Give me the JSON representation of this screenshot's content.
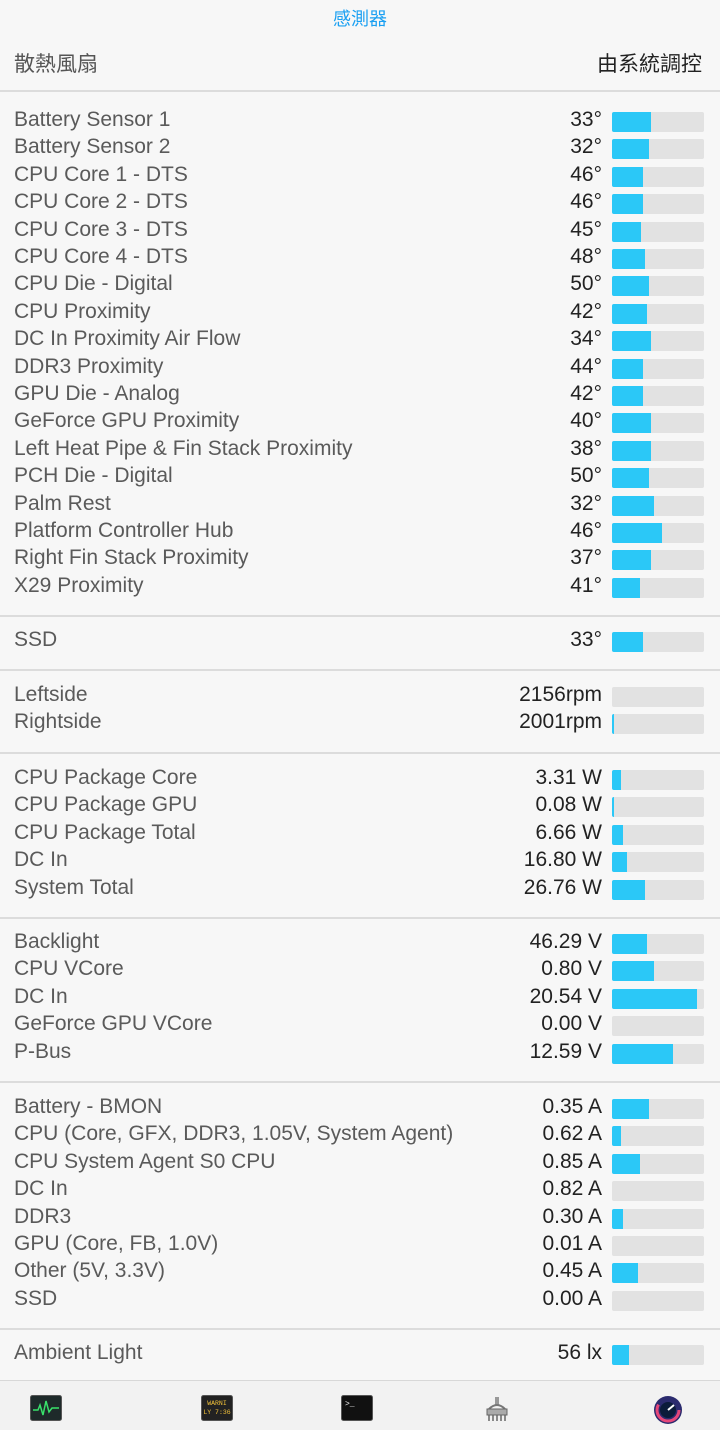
{
  "header": {
    "title": "感測器"
  },
  "fan_control": {
    "label": "散熱風扇",
    "value": "由系統調控"
  },
  "sections": [
    {
      "id": "temperature",
      "rows": [
        {
          "name": "Battery Sensor 1",
          "value": "33°",
          "level": 0.42
        },
        {
          "name": "Battery Sensor 2",
          "value": "32°",
          "level": 0.4
        },
        {
          "name": "CPU Core 1 - DTS",
          "value": "46°",
          "level": 0.34
        },
        {
          "name": "CPU Core 2 - DTS",
          "value": "46°",
          "level": 0.34
        },
        {
          "name": "CPU Core 3 - DTS",
          "value": "45°",
          "level": 0.32
        },
        {
          "name": "CPU Core 4 - DTS",
          "value": "48°",
          "level": 0.36
        },
        {
          "name": "CPU Die - Digital",
          "value": "50°",
          "level": 0.4
        },
        {
          "name": "CPU Proximity",
          "value": "42°",
          "level": 0.38
        },
        {
          "name": "DC In Proximity Air Flow",
          "value": "34°",
          "level": 0.42
        },
        {
          "name": "DDR3 Proximity",
          "value": "44°",
          "level": 0.34
        },
        {
          "name": "GPU Die - Analog",
          "value": "42°",
          "level": 0.34
        },
        {
          "name": "GeForce GPU Proximity",
          "value": "40°",
          "level": 0.42
        },
        {
          "name": "Left Heat Pipe & Fin Stack Proximity",
          "value": "38°",
          "level": 0.42
        },
        {
          "name": "PCH Die - Digital",
          "value": "50°",
          "level": 0.4
        },
        {
          "name": "Palm Rest",
          "value": "32°",
          "level": 0.46
        },
        {
          "name": "Platform Controller Hub",
          "value": "46°",
          "level": 0.54
        },
        {
          "name": "Right Fin Stack Proximity",
          "value": "37°",
          "level": 0.42
        },
        {
          "name": "X29 Proximity",
          "value": "41°",
          "level": 0.3
        }
      ]
    },
    {
      "id": "disk",
      "rows": [
        {
          "name": "SSD",
          "value": "33°",
          "level": 0.34
        }
      ]
    },
    {
      "id": "fans",
      "rows": [
        {
          "name": "Leftside",
          "value": "2156rpm",
          "level": 0.0
        },
        {
          "name": "Rightside",
          "value": "2001rpm",
          "level": 0.02
        }
      ]
    },
    {
      "id": "power",
      "rows": [
        {
          "name": "CPU Package Core",
          "value": "3.31 W",
          "level": 0.1
        },
        {
          "name": "CPU Package GPU",
          "value": "0.08 W",
          "level": 0.02
        },
        {
          "name": "CPU Package Total",
          "value": "6.66 W",
          "level": 0.12
        },
        {
          "name": "DC In",
          "value": "16.80 W",
          "level": 0.16
        },
        {
          "name": "System Total",
          "value": "26.76 W",
          "level": 0.36
        }
      ]
    },
    {
      "id": "voltage",
      "rows": [
        {
          "name": "Backlight",
          "value": "46.29 V",
          "level": 0.38
        },
        {
          "name": "CPU VCore",
          "value": "0.80 V",
          "level": 0.46
        },
        {
          "name": "DC In",
          "value": "20.54 V",
          "level": 0.92
        },
        {
          "name": "GeForce GPU VCore",
          "value": "0.00 V",
          "level": 0.0
        },
        {
          "name": "P-Bus",
          "value": "12.59 V",
          "level": 0.66
        }
      ]
    },
    {
      "id": "current",
      "rows": [
        {
          "name": "Battery - BMON",
          "value": "0.35 A",
          "level": 0.4
        },
        {
          "name": "CPU (Core, GFX, DDR3, 1.05V, System Agent)",
          "value": "0.62 A",
          "level": 0.1
        },
        {
          "name": "CPU System Agent S0 CPU",
          "value": "0.85 A",
          "level": 0.3
        },
        {
          "name": "DC In",
          "value": "0.82 A",
          "level": 0.0
        },
        {
          "name": "DDR3",
          "value": "0.30 A",
          "level": 0.12
        },
        {
          "name": "GPU (Core, FB, 1.0V)",
          "value": "0.01 A",
          "level": 0.0
        },
        {
          "name": "Other (5V, 3.3V)",
          "value": "0.45 A",
          "level": 0.28
        },
        {
          "name": "SSD",
          "value": "0.00 A",
          "level": 0.0
        }
      ]
    },
    {
      "id": "light",
      "rows": [
        {
          "name": "Ambient Light",
          "value": "56 lx",
          "level": 0.18
        }
      ]
    }
  ],
  "tabbar": {
    "items": [
      {
        "icon": "activity-monitor-icon"
      },
      {
        "icon": "console-warning-icon",
        "text": "WARNI\nLY 7:36"
      },
      {
        "icon": "terminal-icon",
        "text": ">_"
      },
      {
        "icon": "network-utility-icon"
      },
      {
        "icon": "speedometer-icon"
      }
    ]
  },
  "colors": {
    "accent": "#1ba0f2",
    "bar_fill": "#2bc8f7",
    "bar_track": "#e2e2e2"
  }
}
